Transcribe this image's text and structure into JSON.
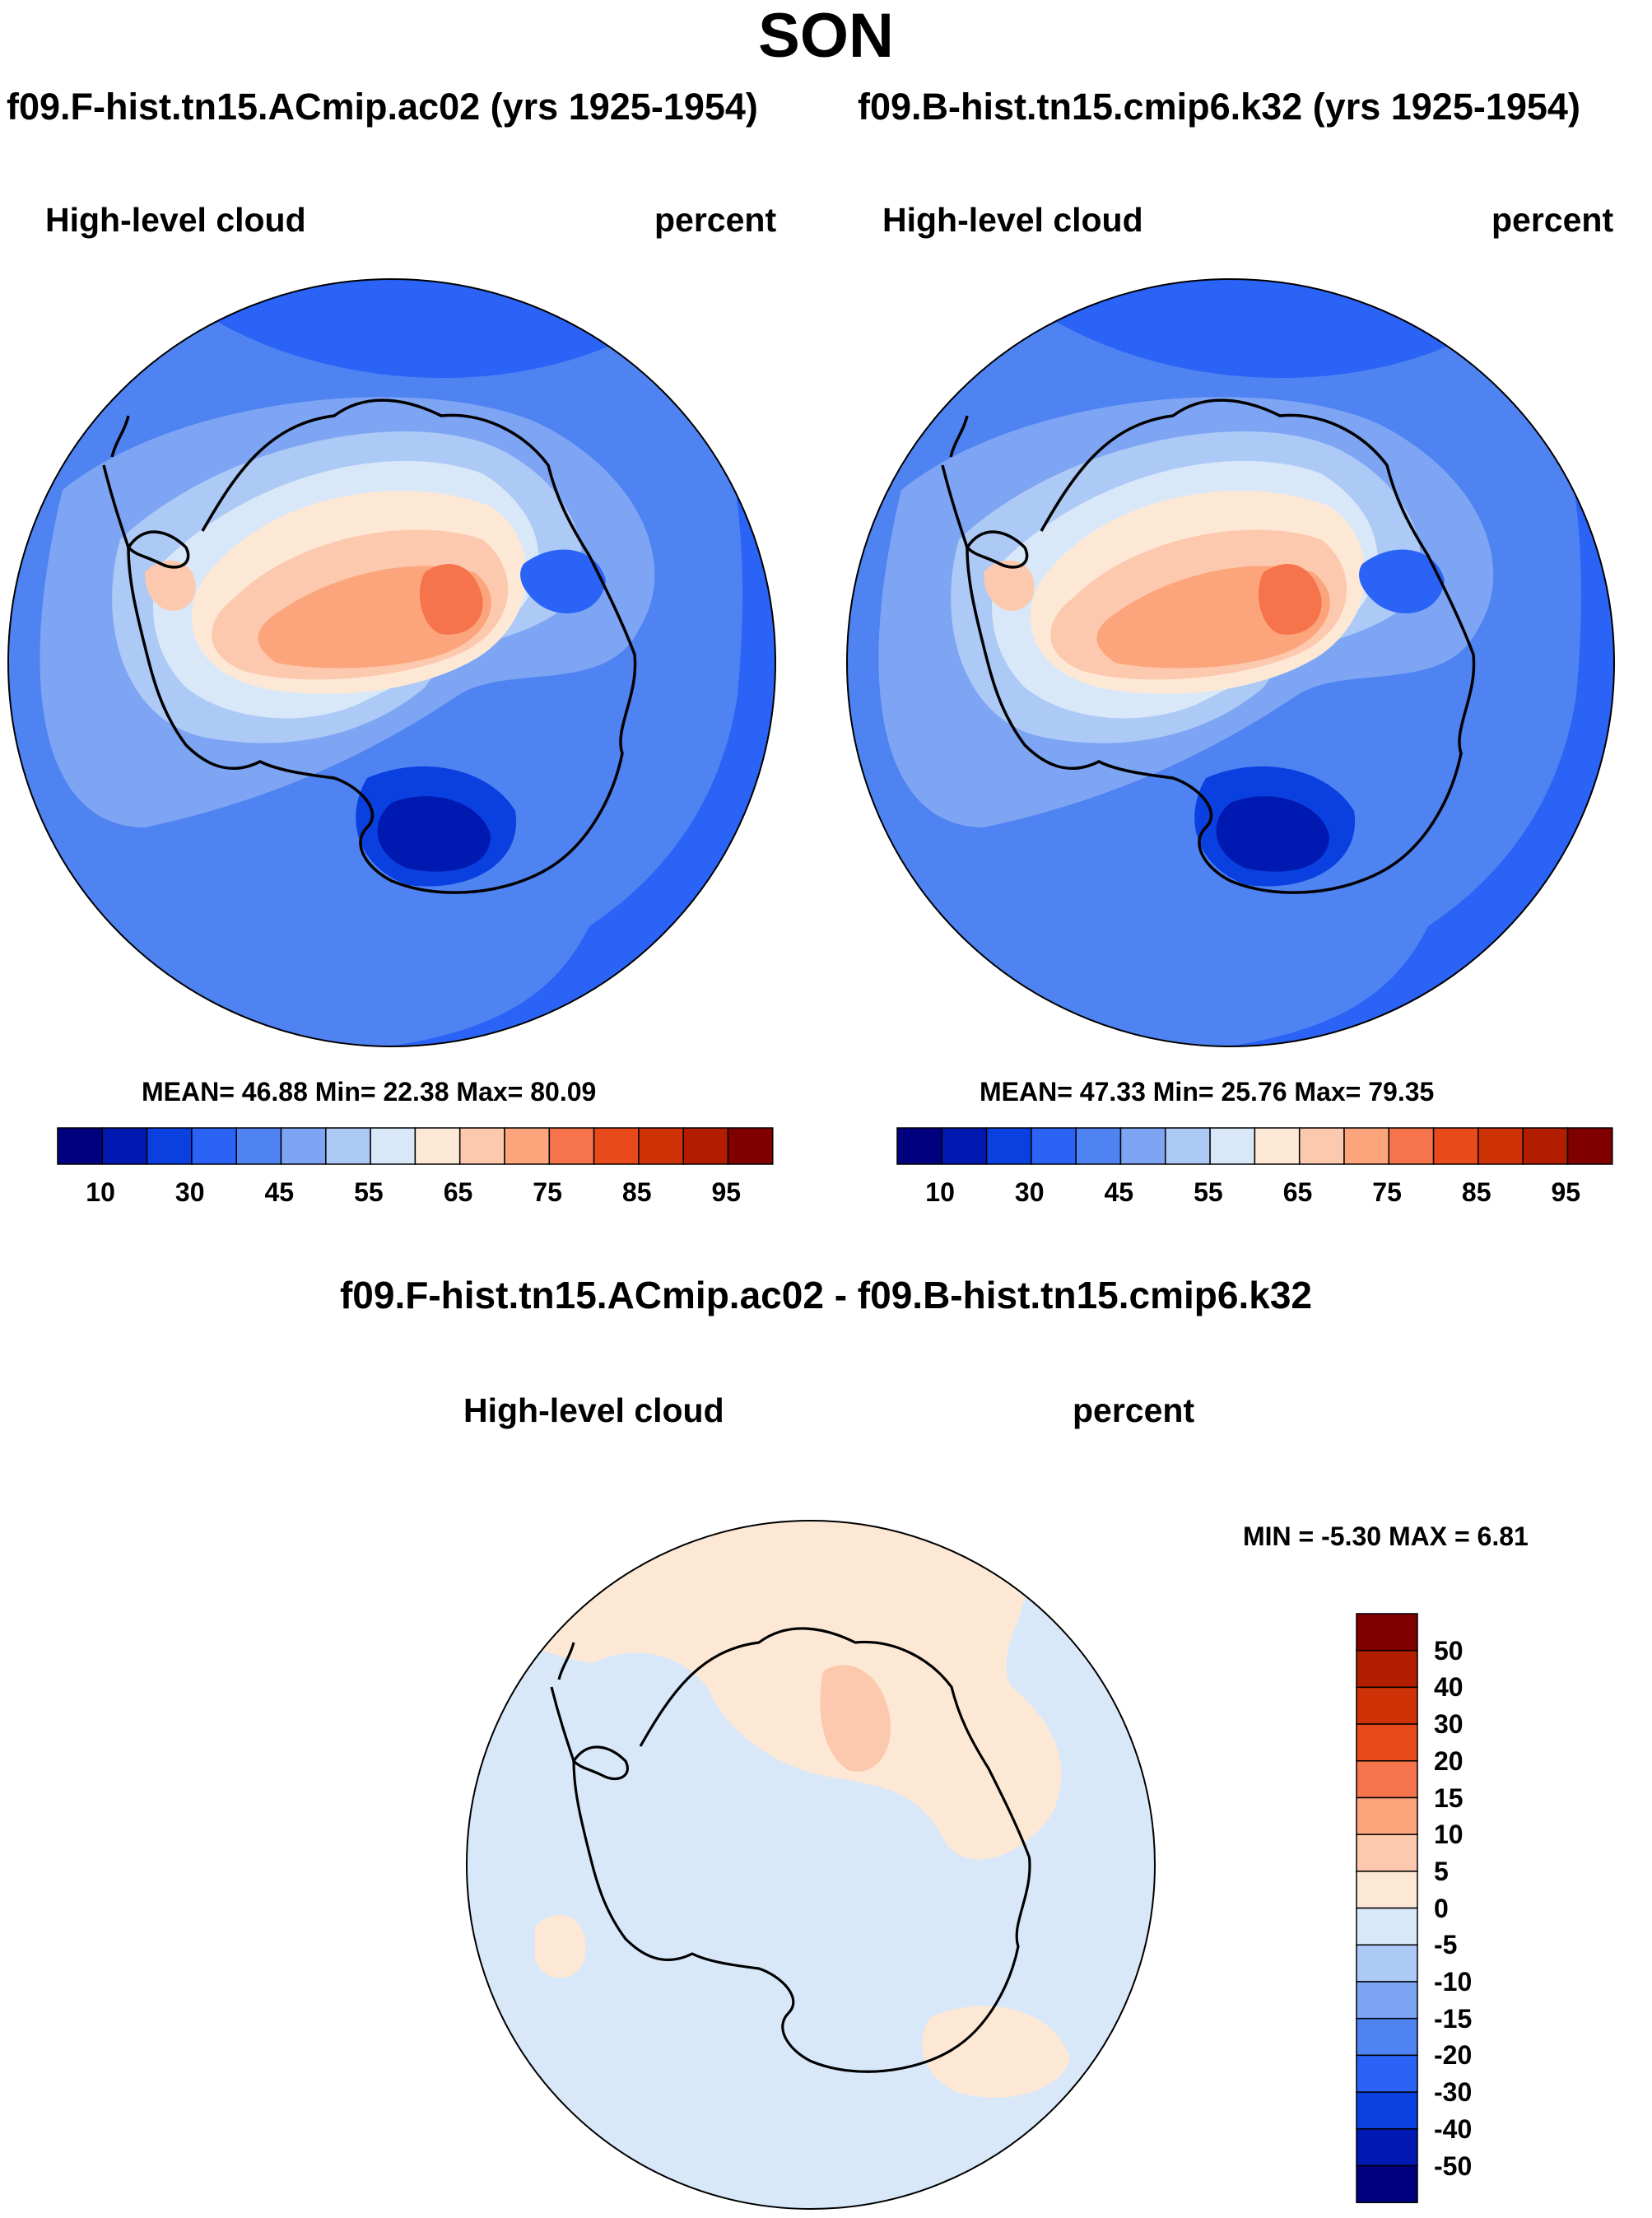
{
  "title": "SON",
  "panels": [
    {
      "case_title": "f09.F-hist.tn15.ACmip.ac02 (yrs 1925-1954)",
      "variable": "High-level cloud",
      "units": "percent",
      "stats_text": "MEAN=  46.88  Min=  22.38  Max=  80.09",
      "stats": {
        "mean": 46.88,
        "min": 22.38,
        "max": 80.09
      }
    },
    {
      "case_title": "f09.B-hist.tn15.cmip6.k32 (yrs 1925-1954)",
      "variable": "High-level cloud",
      "units": "percent",
      "stats_text": "MEAN=  47.33  Min=  25.76  Max=  79.35",
      "stats": {
        "mean": 47.33,
        "min": 25.76,
        "max": 79.35
      }
    }
  ],
  "diff": {
    "title": "f09.F-hist.tn15.ACmip.ac02 - f09.B-hist.tn15.cmip6.k32",
    "variable": "High-level cloud",
    "units": "percent",
    "minmax_text": "MIN =  -5.30 MAX =    6.81",
    "stats": {
      "min": -5.3,
      "max": 6.81
    }
  },
  "colorbar": {
    "labels": [
      "10",
      "30",
      "45",
      "55",
      "65",
      "75",
      "85",
      "95"
    ],
    "colors": [
      "#00007f",
      "#0019b0",
      "#0a3fe0",
      "#2a63f5",
      "#4f83f2",
      "#7ea5f4",
      "#adc9f6",
      "#d8e8f9",
      "#fde8d6",
      "#fdc9ae",
      "#fca57c",
      "#f6744b",
      "#e84a1c",
      "#d03208",
      "#b21d00",
      "#800000"
    ]
  },
  "diff_colorbar": {
    "labels": [
      "50",
      "40",
      "30",
      "20",
      "15",
      "10",
      "5",
      "0",
      "-5",
      "-10",
      "-15",
      "-20",
      "-30",
      "-40",
      "-50"
    ],
    "colors": [
      "#800000",
      "#b21d00",
      "#d03208",
      "#e84a1c",
      "#f6744b",
      "#fca57c",
      "#fdc9ae",
      "#fde8d6",
      "#d8e8f9",
      "#adc9f6",
      "#7ea5f4",
      "#4f83f2",
      "#2a63f5",
      "#0a3fe0",
      "#0019b0",
      "#00007f"
    ]
  }
}
